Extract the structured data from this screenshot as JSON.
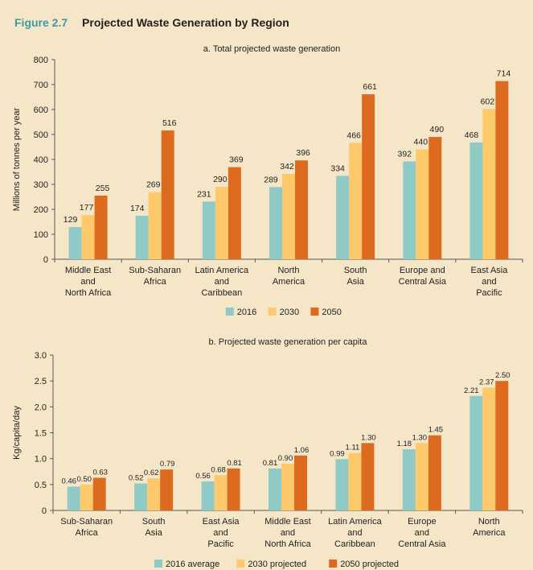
{
  "figure": {
    "number": "Figure 2.7",
    "title": "Projected Waste Generation by Region"
  },
  "colors": {
    "background": "#f6e6c8",
    "s2016": "#8fcac7",
    "s2030": "#fdc96b",
    "s2050": "#dc6b1f",
    "axis": "#555555",
    "accent": "#3b9aa6"
  },
  "chart_data": [
    {
      "type": "bar",
      "title": "a. Total projected waste generation",
      "xlabel": "",
      "ylabel": "Millions of tonnes per year",
      "ylim": [
        0,
        800
      ],
      "yticks": [
        0,
        100,
        200,
        300,
        400,
        500,
        600,
        700,
        800
      ],
      "ytick_labels": [
        "0",
        "100",
        "200",
        "300",
        "400",
        "500",
        "600",
        "700",
        "800"
      ],
      "grid": false,
      "legend_position": "bottom-center",
      "categories": [
        [
          "Middle East",
          "and",
          "North Africa"
        ],
        [
          "Sub-Saharan",
          "Africa"
        ],
        [
          "Latin America",
          "and",
          "Caribbean"
        ],
        [
          "North",
          "America"
        ],
        [
          "South",
          "Asia"
        ],
        [
          "Europe and",
          "Central Asia"
        ],
        [
          "East Asia",
          "and",
          "Pacific"
        ]
      ],
      "series": [
        {
          "name": "2016",
          "values": [
            129,
            174,
            231,
            289,
            334,
            392,
            468
          ]
        },
        {
          "name": "2030",
          "values": [
            177,
            269,
            290,
            342,
            466,
            440,
            602
          ]
        },
        {
          "name": "2050",
          "values": [
            255,
            516,
            369,
            396,
            661,
            490,
            714
          ]
        }
      ]
    },
    {
      "type": "bar",
      "title": "b. Projected waste generation per capita",
      "xlabel": "",
      "ylabel": "Kg/capita/day",
      "ylim": [
        0,
        3.0
      ],
      "yticks": [
        0,
        0.5,
        1.0,
        1.5,
        2.0,
        2.5,
        3.0
      ],
      "ytick_labels": [
        "0",
        "0.5",
        "1.0",
        "1.5",
        "2.0",
        "2.5",
        "3.0"
      ],
      "grid": false,
      "legend_position": "bottom-center",
      "categories": [
        [
          "Sub-Saharan",
          "Africa"
        ],
        [
          "South",
          "Asia"
        ],
        [
          "East Asia",
          "and",
          "Pacific"
        ],
        [
          "Middle East",
          "and",
          "North Africa"
        ],
        [
          "Latin America",
          "and",
          "Caribbean"
        ],
        [
          "Europe",
          "and",
          "Central Asia"
        ],
        [
          "North",
          "America"
        ]
      ],
      "series": [
        {
          "name": "2016 average",
          "values": [
            0.46,
            0.52,
            0.56,
            0.81,
            0.99,
            1.18,
            2.21
          ],
          "labels": [
            "0.46",
            "0.52",
            "0.56",
            "0.81",
            "0.99",
            "1.18",
            "2.21"
          ]
        },
        {
          "name": "2030 projected",
          "values": [
            0.5,
            0.62,
            0.68,
            0.9,
            1.11,
            1.3,
            2.37
          ],
          "labels": [
            "0.50",
            "0.62",
            "0.68",
            "0.90",
            "1.11",
            "1.30",
            "2.37"
          ]
        },
        {
          "name": "2050 projected",
          "values": [
            0.63,
            0.79,
            0.81,
            1.06,
            1.3,
            1.45,
            2.5
          ],
          "labels": [
            "0.63",
            "0.79",
            "0.81",
            "1.06",
            "1.30",
            "1.45",
            "2.50"
          ]
        }
      ]
    }
  ]
}
